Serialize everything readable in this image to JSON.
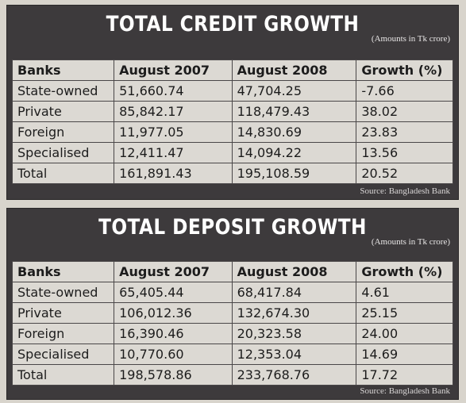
{
  "credit": {
    "title": "TOTAL CREDIT GROWTH",
    "subtitle": "(Amounts in Tk crore)",
    "headers": [
      "Banks",
      "August 2007",
      "August 2008",
      "Growth (%)"
    ],
    "rows": [
      [
        "State-owned",
        "51,660.74",
        "47,704.25",
        "-7.66"
      ],
      [
        "Private",
        "85,842.17",
        "118,479.43",
        "38.02"
      ],
      [
        "Foreign",
        "11,977.05",
        "14,830.69",
        "23.83"
      ],
      [
        "Specialised",
        "12,411.47",
        "14,094.22",
        "13.56"
      ],
      [
        "Total",
        "161,891.43",
        "195,108.59",
        "20.52"
      ]
    ],
    "source": "Source: Bangladesh Bank"
  },
  "deposit": {
    "title": "TOTAL DEPOSIT GROWTH",
    "subtitle": "(Amounts in Tk crore)",
    "headers": [
      "Banks",
      "August 2007",
      "August 2008",
      "Growth (%)"
    ],
    "rows": [
      [
        "State-owned",
        "65,405.44",
        "68,417.84",
        "4.61"
      ],
      [
        "Private",
        "106,012.36",
        "132,674.30",
        "25.15"
      ],
      [
        "Foreign",
        "16,390.46",
        "20,323.58",
        "24.00"
      ],
      [
        "Specialised",
        "10,770.60",
        "12,353.04",
        "14.69"
      ],
      [
        "Total",
        "198,578.86",
        "233,768.76",
        "17.72"
      ]
    ],
    "source": "Source: Bangladesh Bank"
  }
}
